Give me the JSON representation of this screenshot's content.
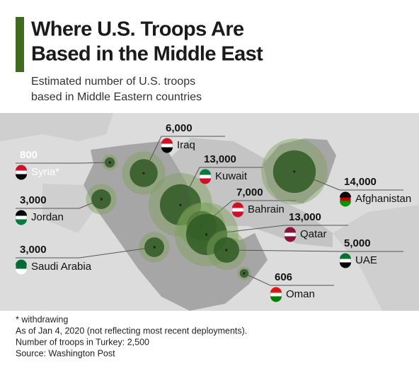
{
  "chart_data": {
    "type": "bubble-map",
    "title": [
      "Where U.S. Troops Are",
      "Based in the Middle East"
    ],
    "subtitle": [
      "Estimated number of U.S. troops",
      "based in Middle Eastern countries"
    ],
    "categories": [
      "Iraq",
      "Syria*",
      "Kuwait",
      "Jordan",
      "Bahrain",
      "Afghanistan",
      "Qatar",
      "UAE",
      "Saudi Arabia",
      "Oman"
    ],
    "values": [
      6000,
      800,
      13000,
      3000,
      7000,
      14000,
      13000,
      5000,
      3000,
      606
    ],
    "value_labels": [
      "6,000",
      "800",
      "13,000",
      "3,000",
      "7,000",
      "14,000",
      "13,000",
      "5,000",
      "3,000",
      "606"
    ],
    "color": "#2f5a22",
    "notes": [
      "* withdrawing",
      "As of Jan 4, 2020 (not reflecting most recent deployments).",
      "Number of troops in Turkey: 2,500",
      "Source: Washington Post"
    ]
  }
}
